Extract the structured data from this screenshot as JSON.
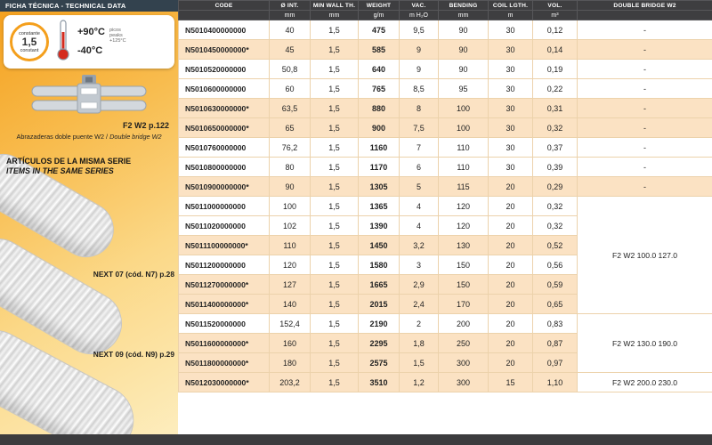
{
  "colors": {
    "accent_orange": "#f49f1c",
    "header_dark": "#3e3e40",
    "row_highlight": "#fbe2c3",
    "topbar_navy": "#33424e"
  },
  "sidebar": {
    "header": "FICHA TÉCNICA - TECHNICAL DATA",
    "card": {
      "constant_top": "constante",
      "constant_value": "1,5",
      "constant_bottom": "constant",
      "temp_high": "+90°C",
      "peaks_es": "picos",
      "peaks_en": "peaks",
      "peaks_value": "+125°C",
      "temp_low": "-40°C"
    },
    "clamp_ref": "F2 W2 p.122",
    "clamp_caption_es": "Abrazaderas doble puente W2 /",
    "clamp_caption_en": "Double bridge W2",
    "series_title_es": "ARTÍCULOS DE LA MISMA SERIE",
    "series_title_en": "ITEMS IN THE SAME SERIES",
    "related": [
      {
        "label": "NEXT 07 (cód. N7) p.28"
      },
      {
        "label": "NEXT 09 (cód. N9) p.29"
      }
    ]
  },
  "table": {
    "headers": [
      {
        "label": "CODE",
        "unit": ""
      },
      {
        "label": "Ø INT.",
        "unit": "mm"
      },
      {
        "label": "MIN WALL TH.",
        "unit": "mm"
      },
      {
        "label": "WEIGHT",
        "unit": "g/m"
      },
      {
        "label": "VAC.",
        "unit": "m H₂O"
      },
      {
        "label": "BENDING",
        "unit": "mm"
      },
      {
        "label": "COIL LGTH.",
        "unit": "m"
      },
      {
        "label": "VOL.",
        "unit": "m³"
      },
      {
        "label": "DOUBLE BRIDGE W2",
        "unit": ""
      }
    ],
    "rows": [
      {
        "code": "N5010400000000",
        "star": false,
        "int": "40",
        "wall": "1,5",
        "weight": "475",
        "vac": "9,5",
        "bend": "90",
        "coil": "30",
        "vol": "0,12",
        "bridge": "-",
        "span": 1
      },
      {
        "code": "N5010450000000*",
        "star": true,
        "int": "45",
        "wall": "1,5",
        "weight": "585",
        "vac": "9",
        "bend": "90",
        "coil": "30",
        "vol": "0,14",
        "bridge": "-",
        "span": 1
      },
      {
        "code": "N5010520000000",
        "star": false,
        "int": "50,8",
        "wall": "1,5",
        "weight": "640",
        "vac": "9",
        "bend": "90",
        "coil": "30",
        "vol": "0,19",
        "bridge": "-",
        "span": 1
      },
      {
        "code": "N5010600000000",
        "star": false,
        "int": "60",
        "wall": "1,5",
        "weight": "765",
        "vac": "8,5",
        "bend": "95",
        "coil": "30",
        "vol": "0,22",
        "bridge": "-",
        "span": 1
      },
      {
        "code": "N5010630000000*",
        "star": true,
        "int": "63,5",
        "wall": "1,5",
        "weight": "880",
        "vac": "8",
        "bend": "100",
        "coil": "30",
        "vol": "0,31",
        "bridge": "-",
        "span": 1
      },
      {
        "code": "N5010650000000*",
        "star": true,
        "int": "65",
        "wall": "1,5",
        "weight": "900",
        "vac": "7,5",
        "bend": "100",
        "coil": "30",
        "vol": "0,32",
        "bridge": "-",
        "span": 1
      },
      {
        "code": "N5010760000000",
        "star": false,
        "int": "76,2",
        "wall": "1,5",
        "weight": "1160",
        "vac": "7",
        "bend": "110",
        "coil": "30",
        "vol": "0,37",
        "bridge": "-",
        "span": 1
      },
      {
        "code": "N5010800000000",
        "star": false,
        "int": "80",
        "wall": "1,5",
        "weight": "1170",
        "vac": "6",
        "bend": "110",
        "coil": "30",
        "vol": "0,39",
        "bridge": "-",
        "span": 1
      },
      {
        "code": "N5010900000000*",
        "star": true,
        "int": "90",
        "wall": "1,5",
        "weight": "1305",
        "vac": "5",
        "bend": "115",
        "coil": "20",
        "vol": "0,29",
        "bridge": "-",
        "span": 1
      },
      {
        "code": "N5011000000000",
        "star": false,
        "int": "100",
        "wall": "1,5",
        "weight": "1365",
        "vac": "4",
        "bend": "120",
        "coil": "20",
        "vol": "0,32",
        "bridge": "F2 W2 100.0 127.0",
        "span": 6
      },
      {
        "code": "N5011020000000",
        "star": false,
        "int": "102",
        "wall": "1,5",
        "weight": "1390",
        "vac": "4",
        "bend": "120",
        "coil": "20",
        "vol": "0,32",
        "bridge": null
      },
      {
        "code": "N5011100000000*",
        "star": true,
        "int": "110",
        "wall": "1,5",
        "weight": "1450",
        "vac": "3,2",
        "bend": "130",
        "coil": "20",
        "vol": "0,52",
        "bridge": null
      },
      {
        "code": "N5011200000000",
        "star": false,
        "int": "120",
        "wall": "1,5",
        "weight": "1580",
        "vac": "3",
        "bend": "150",
        "coil": "20",
        "vol": "0,56",
        "bridge": null
      },
      {
        "code": "N5011270000000*",
        "star": true,
        "int": "127",
        "wall": "1,5",
        "weight": "1665",
        "vac": "2,9",
        "bend": "150",
        "coil": "20",
        "vol": "0,59",
        "bridge": null
      },
      {
        "code": "N5011400000000*",
        "star": true,
        "int": "140",
        "wall": "1,5",
        "weight": "2015",
        "vac": "2,4",
        "bend": "170",
        "coil": "20",
        "vol": "0,65",
        "bridge": null
      },
      {
        "code": "N5011520000000",
        "star": false,
        "int": "152,4",
        "wall": "1,5",
        "weight": "2190",
        "vac": "2",
        "bend": "200",
        "coil": "20",
        "vol": "0,83",
        "bridge": "F2 W2 130.0 190.0",
        "span": 3
      },
      {
        "code": "N5011600000000*",
        "star": true,
        "int": "160",
        "wall": "1,5",
        "weight": "2295",
        "vac": "1,8",
        "bend": "250",
        "coil": "20",
        "vol": "0,87",
        "bridge": null
      },
      {
        "code": "N5011800000000*",
        "star": true,
        "int": "180",
        "wall": "1,5",
        "weight": "2575",
        "vac": "1,5",
        "bend": "300",
        "coil": "20",
        "vol": "0,97",
        "bridge": null
      },
      {
        "code": "N5012030000000*",
        "star": true,
        "int": "203,2",
        "wall": "1,5",
        "weight": "3510",
        "vac": "1,2",
        "bend": "300",
        "coil": "15",
        "vol": "1,10",
        "bridge": "F2 W2 200.0 230.0",
        "span": 1
      }
    ]
  }
}
